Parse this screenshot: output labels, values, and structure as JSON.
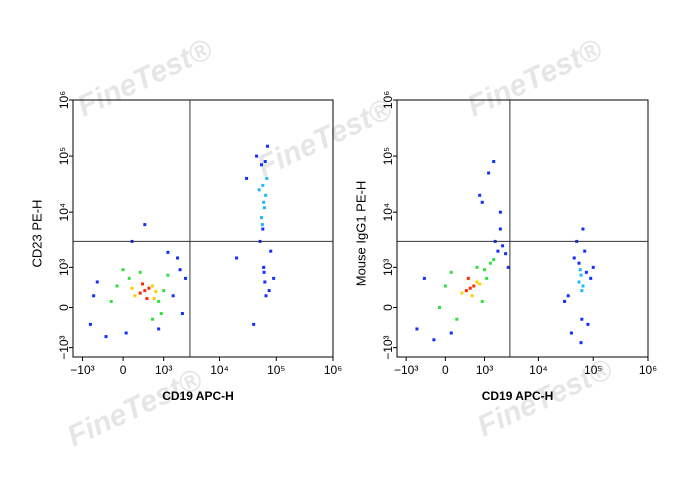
{
  "watermark": "FineTest®",
  "chart_data": [
    {
      "type": "scatter",
      "xlabel": "CD19 APC-H",
      "ylabel": "CD23 PE-H",
      "scale": "biexponential",
      "xlim": [
        -1500,
        1000000
      ],
      "ylim": [
        -1500,
        1000000
      ],
      "xticks": [
        {
          "value": -1000,
          "label": "−10³"
        },
        0,
        {
          "value": 1000,
          "label": "10³"
        },
        {
          "value": 10000,
          "label": "10⁴"
        },
        {
          "value": 100000,
          "label": "10⁵"
        },
        {
          "value": 1000000,
          "label": "10⁶"
        }
      ],
      "yticks": [
        {
          "value": -1000,
          "label": "−10³"
        },
        0,
        {
          "value": 1000,
          "label": "10³"
        },
        {
          "value": 10000,
          "label": "10⁴"
        },
        {
          "value": 100000,
          "label": "10⁵"
        },
        {
          "value": 1000000,
          "label": "10⁶"
        }
      ],
      "quadrant_x": 3000,
      "quadrant_y": 3000,
      "series": [
        {
          "color": "#1030ff",
          "x": [
            -700,
            -500,
            1500,
            2000,
            2500,
            -300,
            1800,
            50,
            1200,
            -600,
            2200,
            800,
            150,
            400
          ],
          "values": [
            -300,
            500,
            200,
            900,
            600,
            -600,
            1500,
            -500,
            1900,
            200,
            -100,
            -400,
            3000,
            6000
          ]
        },
        {
          "color": "#1030ff",
          "x": [
            45000,
            70000,
            52000,
            80000,
            60000,
            63000,
            40000,
            75000,
            55000,
            66000,
            90000,
            20000,
            30000,
            58000,
            61000,
            64000
          ],
          "values": [
            100000,
            150000,
            3000,
            2000,
            1000,
            500,
            -300,
            300,
            70000,
            200,
            600,
            1500,
            40000,
            5000,
            800,
            80000
          ]
        },
        {
          "color": "#20b8ff",
          "x": [
            55000,
            60000,
            65000,
            58000,
            62000,
            50000,
            68000,
            57000
          ],
          "values": [
            8000,
            15000,
            20000,
            30000,
            12000,
            25000,
            40000,
            6000
          ]
        },
        {
          "color": "#30e040",
          "x": [
            -200,
            100,
            900,
            1200,
            0,
            800,
            -100,
            1000,
            600,
            300
          ],
          "values": [
            100,
            600,
            -100,
            700,
            900,
            100,
            400,
            300,
            -200,
            800
          ]
        },
        {
          "color": "#ffd000",
          "x": [
            200,
            600,
            700,
            150,
            650
          ],
          "values": [
            200,
            400,
            280,
            350,
            150
          ]
        },
        {
          "color": "#ff2a00",
          "x": [
            300,
            500,
            400,
            350,
            450
          ],
          "values": [
            250,
            350,
            300,
            450,
            150
          ]
        }
      ]
    },
    {
      "type": "scatter",
      "xlabel": "CD19 APC-H",
      "ylabel": "Mouse IgG1 PE-H",
      "scale": "biexponential",
      "xlim": [
        -1500,
        1000000
      ],
      "ylim": [
        -1500,
        1000000
      ],
      "xticks": [
        {
          "value": -1000,
          "label": "−10³"
        },
        0,
        {
          "value": 1000,
          "label": "10³"
        },
        {
          "value": 10000,
          "label": "10⁴"
        },
        {
          "value": 100000,
          "label": "10⁵"
        },
        {
          "value": 1000000,
          "label": "10⁶"
        }
      ],
      "yticks": [
        {
          "value": -1000,
          "label": "−10³"
        },
        0,
        {
          "value": 1000,
          "label": "10³"
        },
        {
          "value": 10000,
          "label": "10⁴"
        },
        {
          "value": 100000,
          "label": "10⁵"
        },
        {
          "value": 1000000,
          "label": "10⁶"
        }
      ],
      "quadrant_x": 3000,
      "quadrant_y": 3000,
      "series": [
        {
          "color": "#1030ff",
          "x": [
            -600,
            -400,
            1800,
            2200,
            2500,
            -200,
            1600,
            2000,
            100,
            2800,
            800,
            1200,
            1500,
            2000,
            900
          ],
          "values": [
            -400,
            600,
            2000,
            2500,
            1800,
            -700,
            3000,
            10000,
            -500,
            1000,
            20000,
            50000,
            80000,
            5000,
            15000
          ]
        },
        {
          "color": "#1030ff",
          "x": [
            40000,
            45000,
            70000,
            80000,
            50000,
            75000,
            35000,
            90000,
            60000,
            65000,
            55000,
            30000,
            100000,
            62000
          ],
          "values": [
            -500,
            1500,
            2000,
            -300,
            3000,
            800,
            200,
            600,
            -800,
            5000,
            1200,
            100,
            1000,
            -200
          ]
        },
        {
          "color": "#20b8ff",
          "x": [
            55000,
            60000,
            65000,
            58000,
            62000
          ],
          "values": [
            500,
            700,
            400,
            900,
            300
          ]
        },
        {
          "color": "#30e040",
          "x": [
            -100,
            100,
            1000,
            1300,
            1500,
            200,
            900,
            1100,
            0,
            700
          ],
          "values": [
            0,
            800,
            900,
            1200,
            1400,
            -200,
            100,
            600,
            400,
            1000
          ]
        },
        {
          "color": "#ffd000",
          "x": [
            300,
            700,
            800,
            550
          ],
          "values": [
            250,
            500,
            450,
            200
          ]
        },
        {
          "color": "#ff2a00",
          "x": [
            400,
            600,
            500,
            450
          ],
          "values": [
            300,
            400,
            350,
            600
          ]
        }
      ]
    }
  ]
}
